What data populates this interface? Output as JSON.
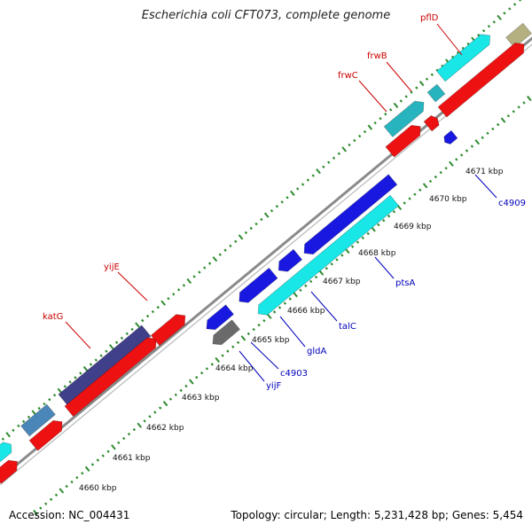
{
  "title": "Escherichia coli CFT073, complete genome",
  "footer": {
    "accession": "Accession: NC_004431",
    "summary": "Topology: circular; Length: 5,231,428 bp; Genes: 5,454"
  },
  "colors": {
    "forward_label": "#cc0000",
    "reverse_label": "#0000bb",
    "backbone": "#8a8a8a",
    "tick": "#2e8b2e",
    "red": "#ee1111",
    "cyan": "#19e6e6",
    "teal": "#28b4be",
    "blue": "#1818e0",
    "navy": "#40408a",
    "steel": "#4a86b8",
    "grey": "#6a6a6a",
    "olive": "#b4b080"
  },
  "scale_labels": [
    "4660 kbp",
    "4661 kbp",
    "4662 kbp",
    "4663 kbp",
    "4664 kbp",
    "4665 kbp",
    "4666 kbp",
    "4667 kbp",
    "4668 kbp",
    "4669 kbp",
    "4670 kbp",
    "4671 kbp"
  ],
  "gene_labels": [
    {
      "name": "katG",
      "strand": "forward"
    },
    {
      "name": "yijE",
      "strand": "forward"
    },
    {
      "name": "frwC",
      "strand": "forward"
    },
    {
      "name": "frwB",
      "strand": "forward"
    },
    {
      "name": "pflD",
      "strand": "forward"
    },
    {
      "name": "yijF",
      "strand": "reverse"
    },
    {
      "name": "c4903",
      "strand": "reverse"
    },
    {
      "name": "gldA",
      "strand": "reverse"
    },
    {
      "name": "talC",
      "strand": "reverse"
    },
    {
      "name": "ptsA",
      "strand": "reverse"
    },
    {
      "name": "c4909",
      "strand": "reverse"
    }
  ]
}
